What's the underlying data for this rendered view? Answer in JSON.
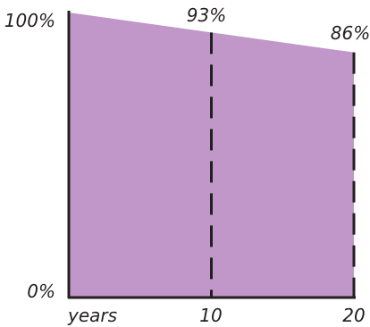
{
  "chart_data": {
    "type": "area",
    "x": [
      0,
      10,
      20
    ],
    "values": [
      100,
      93,
      86
    ],
    "point_labels": [
      "",
      "93%",
      "86%"
    ],
    "ylim": [
      0,
      100
    ],
    "xlim": [
      0,
      20
    ],
    "y_tick_labels": [
      "0%",
      "100%"
    ],
    "x_tick_labels": [
      "years",
      "10",
      "20"
    ],
    "markers": [
      10,
      20
    ],
    "fill_color": "#c196c8",
    "line_color": "#231f20",
    "grid": false,
    "legend": "none"
  }
}
